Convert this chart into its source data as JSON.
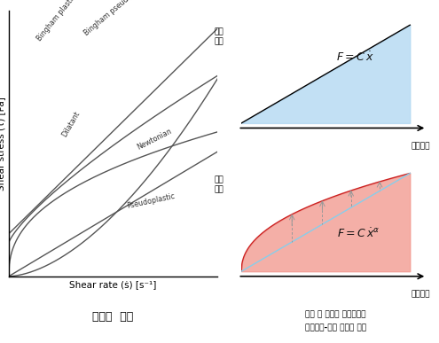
{
  "left_xlabel": "Shear rate (ṡ) [s⁻¹]",
  "left_ylabel": "Shear stress (τ) [Pa]",
  "left_title": "유체의  종류",
  "line_color": "#555555",
  "bingham_plastic_label": "Bingham plastic",
  "bingham_pseudo_label": "Bingham pseudoplastic",
  "dilatant_label": "Dilatant",
  "newtonian_label": "Newtonian",
  "pseudoplastic_label": "Pseudoplastic",
  "top_right_xlabel": "변형속도",
  "top_right_ylabel": "가력\n응력",
  "top_right_fill_color": "#aed6f1",
  "bottom_right_xlabel": "변형속도",
  "bottom_right_ylabel": "가력\n응력",
  "bottom_right_fill_color": "#f1948a",
  "dashed_line_color": "#999999",
  "linear_line_color": "#87CEEB",
  "bottom_caption_line1": "선형 및 비선형 감켔장치의",
  "bottom_caption_line2": "변형속도-하중 그래프 개형"
}
